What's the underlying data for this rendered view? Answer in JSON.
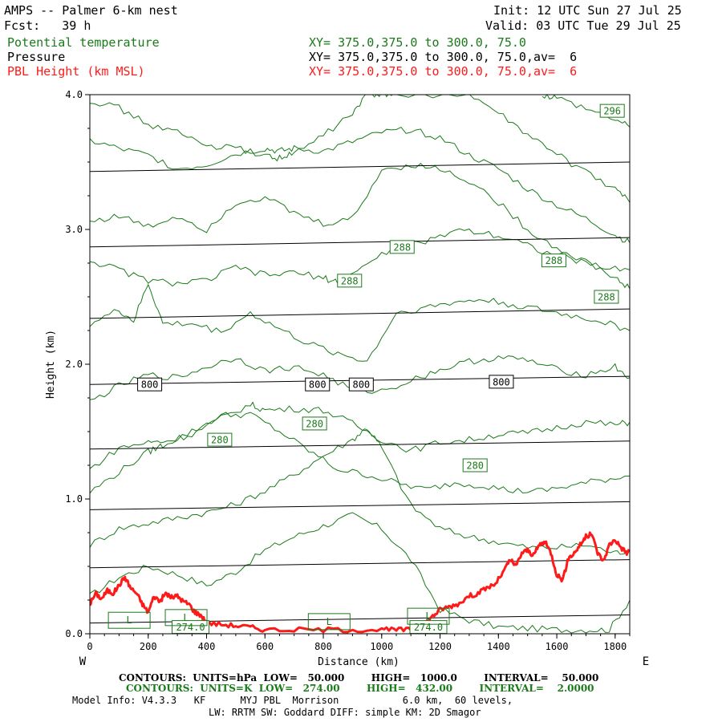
{
  "header": {
    "title": "AMPS -- Palmer 6-km nest",
    "init": "Init: 12 UTC Sun 27 Jul 25",
    "fcst": "Fcst:   39 h",
    "valid": "Valid: 03 UTC Tue 29 Jul 25",
    "field1_name": "Potential temperature",
    "field1_xy": "XY= 375.0,375.0 to 300.0, 75.0",
    "field2_name": "Pressure",
    "field2_xy": "XY= 375.0,375.0 to 300.0, 75.0,av=  6",
    "field3_name": "PBL Height (km MSL)",
    "field3_xy": "XY= 375.0,375.0 to 300.0, 75.0,av=  6"
  },
  "colors": {
    "theta": "#1a7a1a",
    "pressure": "#000000",
    "pbl": "#ff1a1a"
  },
  "footer": {
    "contours_black": "CONTOURS:  UNITS=hPa  LOW=   50.000        HIGH=   1000.0        INTERVAL=    50.000",
    "contours_green": "CONTOURS:  UNITS=K  LOW=   274.00        HIGH=   432.00        INTERVAL=    2.0000",
    "model_info": "Model Info: V4.3.3   KF      MYJ PBL  Morrison           6.0 km,  60 levels,",
    "model_info2": "LW: RRTM SW: Goddard DIFF: simple KM: 2D Smagor",
    "west": "W",
    "east": "E"
  },
  "chart_data": {
    "type": "line",
    "title": "",
    "xlabel": "Distance (km)",
    "ylabel": "Height (km)",
    "xlim": [
      0,
      1850
    ],
    "ylim": [
      0,
      4.0
    ],
    "x_ticks": [
      0,
      200,
      400,
      600,
      800,
      1000,
      1200,
      1400,
      1600,
      1800
    ],
    "y_ticks": [
      0.0,
      1.0,
      2.0,
      3.0,
      4.0
    ],
    "y_tick_labels": [
      "0.0",
      "1.0",
      "2.0",
      "3.0",
      "4.0"
    ],
    "pressure_isobars": [
      {
        "x": [
          0,
          1850
        ],
        "y": [
          0.08,
          0.14
        ]
      },
      {
        "x": [
          0,
          1850
        ],
        "y": [
          0.49,
          0.55
        ]
      },
      {
        "x": [
          0,
          1850
        ],
        "y": [
          0.92,
          0.98
        ]
      },
      {
        "x": [
          0,
          1850
        ],
        "y": [
          1.37,
          1.43
        ]
      },
      {
        "x": [
          0,
          1850
        ],
        "y": [
          1.85,
          1.91
        ]
      },
      {
        "x": [
          0,
          1850
        ],
        "y": [
          2.34,
          2.41
        ]
      },
      {
        "x": [
          0,
          1850
        ],
        "y": [
          2.87,
          2.94
        ]
      },
      {
        "x": [
          0,
          1850
        ],
        "y": [
          3.43,
          3.5
        ]
      }
    ],
    "pressure_labels": [
      {
        "text": "800",
        "x": 205,
        "y": 1.85
      },
      {
        "text": "800",
        "x": 780,
        "y": 1.85
      },
      {
        "text": "800",
        "x": 930,
        "y": 1.85
      },
      {
        "text": "800",
        "x": 1410,
        "y": 1.87
      }
    ],
    "theta_contours": [
      {
        "x": [
          0,
          100,
          200,
          300,
          400,
          500,
          600,
          700,
          800,
          900,
          1000,
          1100,
          1200,
          1300,
          1400,
          1500,
          1600,
          1700,
          1780,
          1850
        ],
        "y": [
          0.28,
          0.42,
          0.5,
          0.44,
          0.36,
          0.46,
          0.62,
          0.72,
          0.8,
          0.88,
          0.78,
          0.55,
          0.18,
          0.1,
          0.05,
          0.04,
          0.03,
          0.03,
          0.03,
          0.25
        ]
      },
      {
        "x": [
          0,
          100,
          200,
          300,
          400,
          500,
          600,
          700,
          800,
          900,
          950,
          1000,
          1100,
          1200,
          1300,
          1400,
          1500,
          1600,
          1700,
          1800,
          1850
        ],
        "y": [
          0.66,
          0.78,
          0.82,
          0.86,
          0.9,
          0.96,
          1.06,
          1.18,
          1.32,
          1.44,
          1.53,
          1.38,
          0.95,
          0.78,
          0.72,
          0.68,
          0.64,
          0.64,
          0.66,
          0.6,
          0.62
        ]
      },
      {
        "x": [
          0,
          100,
          200,
          250,
          350,
          450,
          550,
          650,
          750,
          850,
          950,
          1050,
          1150,
          1250,
          1350,
          1450,
          1550,
          1650,
          1750,
          1850
        ],
        "y": [
          1.05,
          1.2,
          1.35,
          1.4,
          1.5,
          1.62,
          1.63,
          1.5,
          1.36,
          1.22,
          1.18,
          1.12,
          1.07,
          1.12,
          1.1,
          1.06,
          1.06,
          1.1,
          1.14,
          1.17
        ]
      },
      {
        "x": [
          0,
          100,
          200,
          264,
          350,
          450,
          550,
          600,
          700,
          800,
          900,
          1000,
          1100,
          1200,
          1300,
          1400,
          1500,
          1600,
          1700,
          1800,
          1850
        ],
        "y": [
          1.22,
          1.38,
          1.42,
          1.43,
          1.48,
          1.6,
          1.7,
          1.66,
          1.67,
          1.66,
          1.56,
          1.44,
          1.36,
          1.42,
          1.44,
          1.48,
          1.49,
          1.53,
          1.57,
          1.55,
          1.57
        ]
      },
      {
        "x": [
          0,
          100,
          200,
          300,
          400,
          500,
          600,
          700,
          800,
          900,
          1000,
          1100,
          1200,
          1300,
          1400,
          1500,
          1600,
          1700,
          1800,
          1850
        ],
        "y": [
          1.72,
          1.84,
          1.92,
          1.9,
          1.98,
          2.05,
          1.95,
          1.98,
          1.92,
          1.81,
          1.8,
          1.88,
          1.96,
          2.02,
          2.05,
          2.03,
          1.96,
          1.92,
          1.98,
          1.9
        ]
      },
      {
        "x": [
          0,
          100,
          150,
          200,
          250,
          350,
          450,
          550,
          650,
          750,
          850,
          950,
          1050,
          1150,
          1250,
          1350,
          1450,
          1550,
          1650,
          1750,
          1850
        ],
        "y": [
          2.3,
          2.4,
          2.32,
          2.6,
          2.3,
          2.3,
          2.24,
          2.38,
          2.26,
          2.15,
          2.08,
          2.02,
          2.38,
          2.42,
          2.46,
          2.48,
          2.44,
          2.4,
          2.36,
          2.32,
          2.25
        ]
      },
      {
        "x": [
          0,
          100,
          200,
          300,
          400,
          500,
          600,
          700,
          800,
          850,
          950,
          1050,
          1150,
          1250,
          1350,
          1450,
          1550,
          1650,
          1750,
          1850
        ],
        "y": [
          2.77,
          2.7,
          2.62,
          2.6,
          2.62,
          2.72,
          2.66,
          2.68,
          2.64,
          2.61,
          2.74,
          2.88,
          2.9,
          3.0,
          2.98,
          2.93,
          2.84,
          2.78,
          2.72,
          2.7
        ]
      },
      {
        "x": [
          0,
          100,
          200,
          300,
          400,
          500,
          600,
          700,
          800,
          900,
          1000,
          1100,
          1200,
          1300,
          1400,
          1500,
          1600,
          1700,
          1800,
          1850
        ],
        "y": [
          3.06,
          3.1,
          3.02,
          3.1,
          3.0,
          3.2,
          3.24,
          3.12,
          3.04,
          3.08,
          3.44,
          3.48,
          3.45,
          3.36,
          3.2,
          3.0,
          2.86,
          2.76,
          2.64,
          2.56
        ]
      },
      {
        "x": [
          0,
          100,
          200,
          300,
          400,
          500,
          600,
          650,
          700,
          800,
          900,
          1000,
          1100,
          1200,
          1300,
          1400,
          1500,
          1600,
          1700,
          1800,
          1850
        ],
        "y": [
          3.66,
          3.6,
          3.55,
          3.45,
          3.48,
          3.56,
          3.6,
          3.58,
          3.6,
          3.58,
          3.65,
          3.72,
          3.74,
          3.68,
          3.55,
          3.45,
          3.3,
          3.18,
          3.08,
          2.96,
          2.9
        ]
      },
      {
        "x": [
          0,
          100,
          200,
          300,
          400,
          500,
          600,
          650,
          700,
          800,
          900,
          950,
          1000,
          1050,
          1300,
          1400,
          1500,
          1600,
          1700,
          1800,
          1850
        ],
        "y": [
          3.96,
          3.9,
          3.78,
          3.72,
          3.62,
          3.6,
          3.55,
          3.53,
          3.56,
          3.7,
          3.86,
          4.0,
          4.0,
          4.0,
          4.0,
          3.86,
          3.7,
          3.56,
          3.42,
          3.3,
          3.2
        ]
      },
      {
        "x": [
          1550,
          1600,
          1700,
          1800,
          1850
        ],
        "y": [
          4.0,
          3.98,
          3.9,
          3.82,
          3.76
        ]
      }
    ],
    "theta_labels": [
      {
        "text": "296",
        "x": 1790,
        "y": 3.88
      },
      {
        "text": "288",
        "x": 1070,
        "y": 2.87
      },
      {
        "text": "288",
        "x": 1590,
        "y": 2.77
      },
      {
        "text": "288",
        "x": 890,
        "y": 2.62
      },
      {
        "text": "288",
        "x": 1770,
        "y": 2.5
      },
      {
        "text": "280",
        "x": 770,
        "y": 1.56
      },
      {
        "text": "280",
        "x": 445,
        "y": 1.44
      },
      {
        "text": "280",
        "x": 1320,
        "y": 1.25
      },
      {
        "text": "274.0",
        "x": 345,
        "y": 0.05
      },
      {
        "text": "274.0",
        "x": 1160,
        "y": 0.05
      }
    ],
    "low_markers": [
      {
        "text": "L",
        "x": 135,
        "y": 0.1
      },
      {
        "text": "L",
        "x": 330,
        "y": 0.12
      },
      {
        "text": "L",
        "x": 820,
        "y": 0.09
      },
      {
        "text": "L",
        "x": 1160,
        "y": 0.13
      }
    ],
    "pbl_height": {
      "name": "PBL Height (km MSL)",
      "x": [
        0,
        20,
        40,
        60,
        80,
        100,
        120,
        140,
        160,
        180,
        200,
        220,
        240,
        260,
        280,
        300,
        320,
        340,
        360,
        380,
        400,
        450,
        500,
        550,
        600,
        700,
        800,
        900,
        1000,
        1050,
        1100,
        1130,
        1150,
        1180,
        1200,
        1230,
        1260,
        1300,
        1330,
        1360,
        1390,
        1420,
        1440,
        1460,
        1480,
        1500,
        1520,
        1540,
        1560,
        1580,
        1600,
        1620,
        1640,
        1660,
        1680,
        1700,
        1720,
        1740,
        1760,
        1780,
        1800,
        1820,
        1840,
        1850
      ],
      "y": [
        0.22,
        0.3,
        0.26,
        0.32,
        0.3,
        0.36,
        0.42,
        0.34,
        0.3,
        0.22,
        0.16,
        0.28,
        0.24,
        0.3,
        0.27,
        0.28,
        0.24,
        0.22,
        0.16,
        0.14,
        0.08,
        0.07,
        0.06,
        0.05,
        0.03,
        0.03,
        0.03,
        0.03,
        0.03,
        0.03,
        0.03,
        0.04,
        0.08,
        0.14,
        0.18,
        0.2,
        0.22,
        0.28,
        0.3,
        0.34,
        0.37,
        0.47,
        0.55,
        0.5,
        0.6,
        0.62,
        0.58,
        0.66,
        0.68,
        0.6,
        0.44,
        0.4,
        0.56,
        0.6,
        0.66,
        0.72,
        0.74,
        0.6,
        0.54,
        0.66,
        0.7,
        0.64,
        0.6,
        0.62
      ]
    }
  }
}
